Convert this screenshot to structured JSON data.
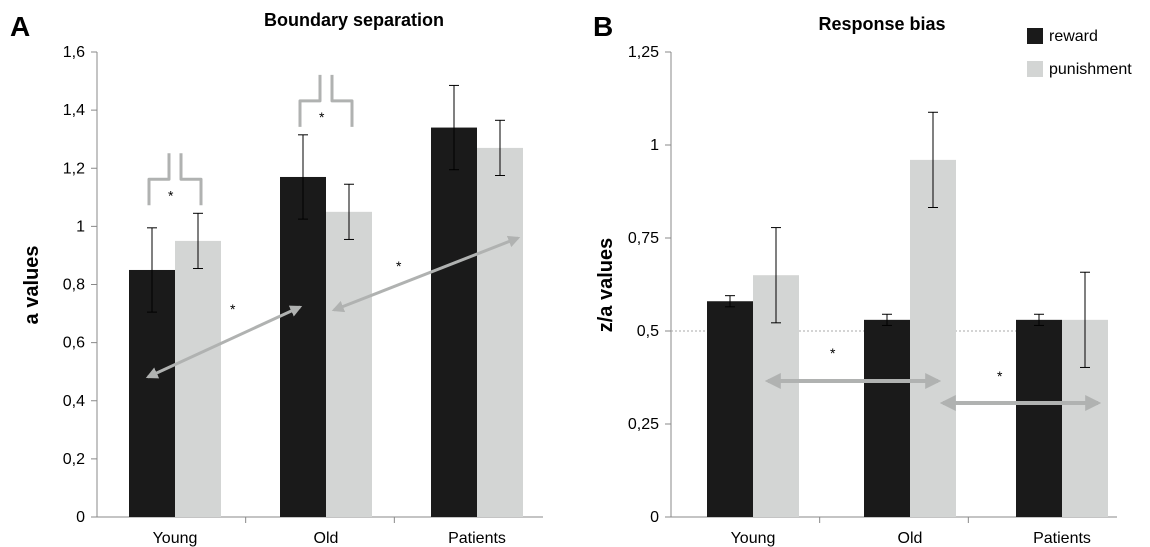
{
  "chart_data": [
    {
      "type": "bar",
      "panel": "A",
      "title": "Boundary separation",
      "ylabel": "a values",
      "xlabel": "",
      "ylim": [
        0,
        1.6
      ],
      "y_tick_labels": [
        "0",
        "0,2",
        "0,4",
        "0,6",
        "0,8",
        "1",
        "1,2",
        "1,4",
        "1,6"
      ],
      "categories": [
        "Young",
        "Old",
        "Patients"
      ],
      "series": [
        {
          "name": "reward",
          "color": "#1a1a1a",
          "values": [
            0.85,
            1.17,
            1.34
          ],
          "errors": [
            0.145,
            0.145,
            0.145
          ]
        },
        {
          "name": "punishment",
          "color": "#d3d5d4",
          "values": [
            0.95,
            1.05,
            1.27
          ],
          "errors": [
            0.095,
            0.095,
            0.095
          ]
        }
      ],
      "significance": [
        {
          "type": "bracket",
          "group": "Young",
          "label": "*"
        },
        {
          "type": "bracket",
          "group": "Old",
          "label": "*"
        },
        {
          "type": "arrow",
          "from_group": "Young",
          "to_group": "Old",
          "label": "*"
        },
        {
          "type": "arrow",
          "from_group": "Old",
          "to_group": "Patients",
          "label": "*"
        }
      ]
    },
    {
      "type": "bar",
      "panel": "B",
      "title": "Response bias",
      "ylabel": "z/a values",
      "xlabel": "",
      "ylim": [
        0,
        1.25
      ],
      "y_tick_labels": [
        "0",
        "0,25",
        "0,5",
        "0,75",
        "1",
        "1,25"
      ],
      "categories": [
        "Young",
        "Old",
        "Patients"
      ],
      "reference_line": 0.5,
      "series": [
        {
          "name": "reward",
          "color": "#1a1a1a",
          "values": [
            0.58,
            0.53,
            0.53
          ],
          "errors": [
            0.015,
            0.015,
            0.015
          ]
        },
        {
          "name": "punishment",
          "color": "#d3d5d4",
          "values": [
            0.65,
            0.96,
            0.53
          ],
          "errors": [
            0.128,
            0.128,
            0.128
          ]
        }
      ],
      "significance": [
        {
          "type": "arrow",
          "from_group": "Young",
          "to_group": "Old",
          "label": "*"
        },
        {
          "type": "arrow",
          "from_group": "Old",
          "to_group": "Patients",
          "label": "*"
        }
      ]
    }
  ],
  "legend": {
    "placement": "top-right",
    "items": [
      {
        "label": "reward",
        "color": "#1a1a1a"
      },
      {
        "label": "punishment",
        "color": "#d3d5d4"
      }
    ]
  },
  "style": {
    "arrow_color": "#b0b2b1",
    "bracket_color": "#b0b2b1",
    "axis_color": "#888888",
    "reference_line_color": "#aaaaaa"
  }
}
